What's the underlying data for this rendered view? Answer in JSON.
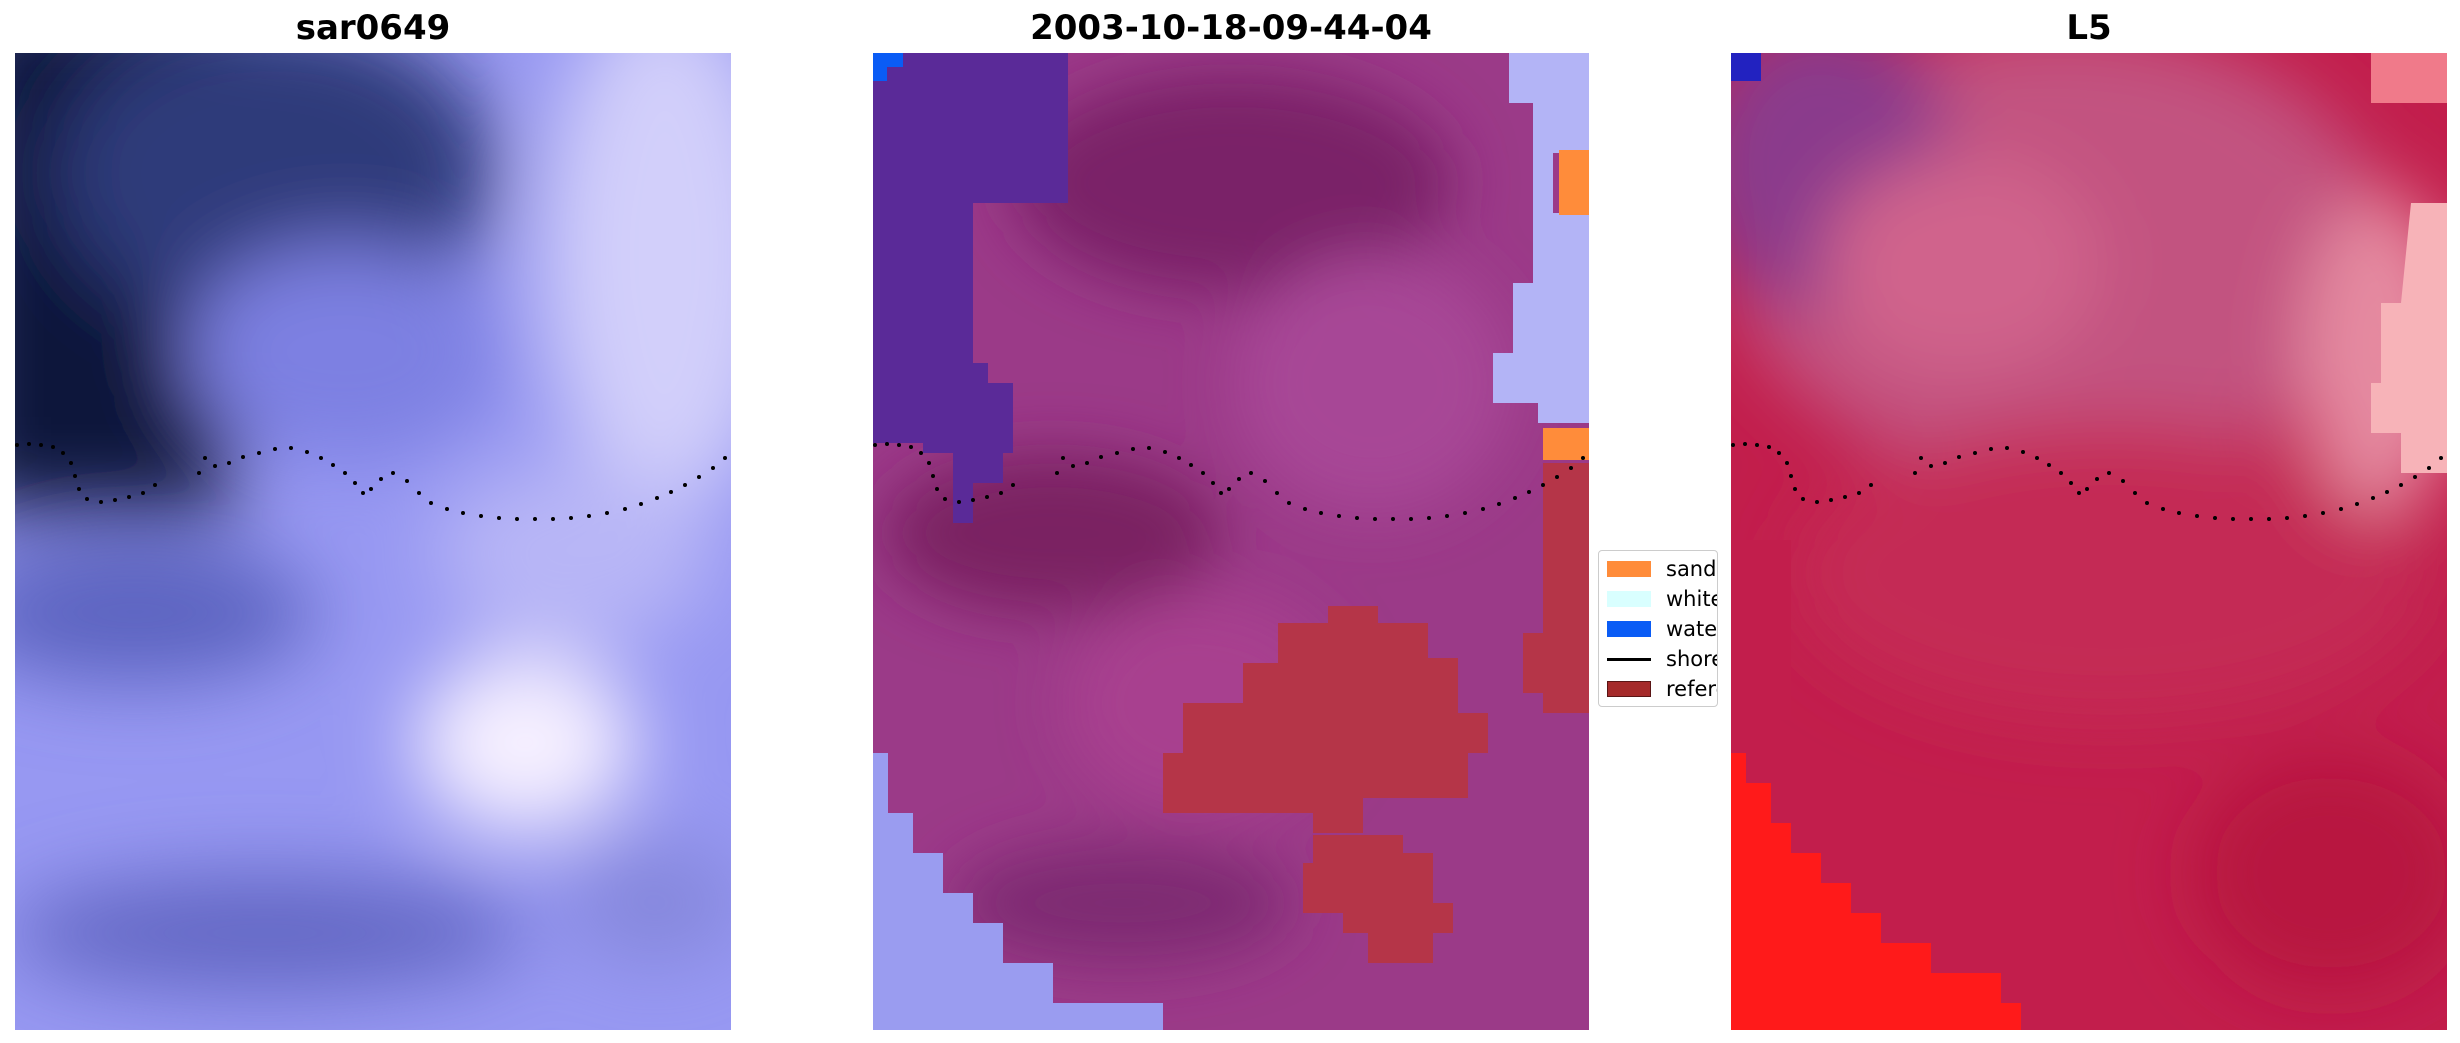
{
  "panels": [
    {
      "title": "sar0649"
    },
    {
      "title": "2003-10-18-09-44-04"
    },
    {
      "title": "L5"
    }
  ],
  "legend": {
    "items": [
      {
        "label": "sand",
        "color": "#ff8c3a",
        "kind": "patch"
      },
      {
        "label": "whitewater",
        "color": "#d9ffff",
        "kind": "patch"
      },
      {
        "label": "water",
        "color": "#0a5cf5",
        "kind": "patch"
      },
      {
        "label": "shoreline",
        "color": "#000000",
        "kind": "line"
      },
      {
        "label": "reference",
        "color": "#a52a2a",
        "kind": "patch",
        "edge": "#5a1515"
      }
    ]
  },
  "colors": {
    "sar_dark": "#0f1632",
    "sar_mid": "#8b8ef0",
    "sar_light": "#e6e2fb",
    "purple_class": "#5a2a98",
    "magenta": "#a0357a",
    "reference_red": "#b53548",
    "l5_crimson": "#c21e4c",
    "l5_red": "#ff1414"
  }
}
